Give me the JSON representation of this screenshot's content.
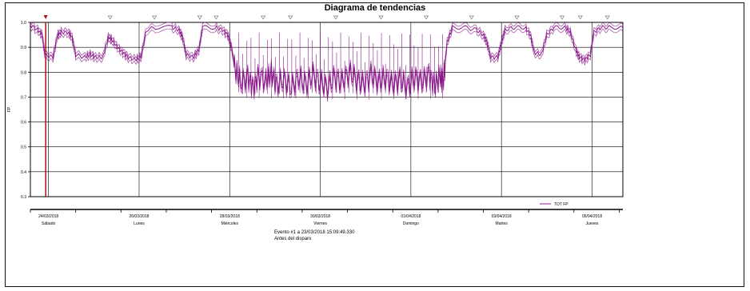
{
  "chart_data": {
    "type": "line",
    "title": "Diagrama de tendencias",
    "ylabel": "FP",
    "ylim": [
      0.3,
      1.0
    ],
    "yticks": [
      "0.3",
      "0.4",
      "0.5",
      "0.6",
      "0.7",
      "0.8",
      "0.9",
      "1.0"
    ],
    "x_range_days": [
      0,
      6.54
    ],
    "xticks": [
      {
        "day": 0.2,
        "date": "24/03/2018",
        "weekday": "Sábado"
      },
      {
        "day": 1.2,
        "date": "26/03/2018",
        "weekday": "Lunes"
      },
      {
        "day": 2.2,
        "date": "28/03/2018",
        "weekday": "Miércoles"
      },
      {
        "day": 3.2,
        "date": "30/03/2018",
        "weekday": "Viernes"
      },
      {
        "day": 4.2,
        "date": "01/04/2018",
        "weekday": "Domingo"
      },
      {
        "day": 5.2,
        "date": "03/04/2018",
        "weekday": "Martes"
      },
      {
        "day": 6.2,
        "date": "05/04/2018",
        "weekday": "Jueves"
      }
    ],
    "event_marker_days": [
      0.88,
      1.37,
      1.87,
      2.05,
      2.57,
      2.87,
      3.37,
      3.87,
      4.37,
      4.87,
      5.37,
      5.87,
      6.07,
      6.37
    ],
    "trigger_day": 0.01,
    "legend": {
      "label": "TOT FP",
      "position": "bottom-right"
    },
    "grid": true,
    "series": [
      {
        "name": "TOT FP",
        "color": "#8b1a8b",
        "points": [
          [
            0.0,
            0.99
          ],
          [
            0.08,
            0.97
          ],
          [
            0.13,
            0.95
          ],
          [
            0.16,
            0.87
          ],
          [
            0.25,
            0.86
          ],
          [
            0.3,
            0.95
          ],
          [
            0.34,
            0.96
          ],
          [
            0.42,
            0.96
          ],
          [
            0.46,
            0.94
          ],
          [
            0.5,
            0.87
          ],
          [
            0.6,
            0.86
          ],
          [
            0.66,
            0.87
          ],
          [
            0.72,
            0.86
          ],
          [
            0.8,
            0.86
          ],
          [
            0.86,
            0.94
          ],
          [
            0.9,
            0.93
          ],
          [
            0.96,
            0.9
          ],
          [
            1.02,
            0.88
          ],
          [
            1.08,
            0.86
          ],
          [
            1.16,
            0.85
          ],
          [
            1.22,
            0.86
          ],
          [
            1.28,
            0.97
          ],
          [
            1.4,
            0.98
          ],
          [
            1.56,
            0.98
          ],
          [
            1.64,
            0.97
          ],
          [
            1.68,
            0.94
          ],
          [
            1.72,
            0.87
          ],
          [
            1.8,
            0.86
          ],
          [
            1.86,
            0.89
          ],
          [
            1.9,
            0.98
          ],
          [
            2.04,
            0.98
          ],
          [
            2.12,
            0.97
          ],
          [
            2.18,
            0.95
          ],
          [
            2.22,
            0.9
          ],
          [
            2.26,
            0.81
          ],
          [
            2.32,
            0.76
          ],
          [
            2.4,
            0.78
          ],
          [
            2.46,
            0.74
          ],
          [
            2.52,
            0.79
          ],
          [
            2.6,
            0.76
          ],
          [
            2.66,
            0.8
          ],
          [
            2.72,
            0.75
          ],
          [
            2.8,
            0.77
          ],
          [
            2.88,
            0.74
          ],
          [
            2.96,
            0.78
          ],
          [
            3.04,
            0.75
          ],
          [
            3.12,
            0.79
          ],
          [
            3.2,
            0.76
          ],
          [
            3.28,
            0.74
          ],
          [
            3.36,
            0.78
          ],
          [
            3.44,
            0.76
          ],
          [
            3.52,
            0.8
          ],
          [
            3.6,
            0.77
          ],
          [
            3.68,
            0.75
          ],
          [
            3.76,
            0.79
          ],
          [
            3.84,
            0.76
          ],
          [
            3.92,
            0.78
          ],
          [
            4.0,
            0.75
          ],
          [
            4.08,
            0.77
          ],
          [
            4.16,
            0.74
          ],
          [
            4.24,
            0.78
          ],
          [
            4.32,
            0.76
          ],
          [
            4.4,
            0.79
          ],
          [
            4.46,
            0.75
          ],
          [
            4.52,
            0.78
          ],
          [
            4.56,
            0.77
          ],
          [
            4.6,
            0.92
          ],
          [
            4.66,
            0.98
          ],
          [
            4.8,
            0.98
          ],
          [
            4.92,
            0.97
          ],
          [
            5.0,
            0.95
          ],
          [
            5.04,
            0.92
          ],
          [
            5.08,
            0.86
          ],
          [
            5.16,
            0.86
          ],
          [
            5.2,
            0.92
          ],
          [
            5.24,
            0.97
          ],
          [
            5.34,
            0.98
          ],
          [
            5.46,
            0.98
          ],
          [
            5.52,
            0.95
          ],
          [
            5.56,
            0.88
          ],
          [
            5.64,
            0.87
          ],
          [
            5.7,
            0.95
          ],
          [
            5.78,
            0.98
          ],
          [
            5.9,
            0.98
          ],
          [
            5.96,
            0.96
          ],
          [
            6.02,
            0.89
          ],
          [
            6.06,
            0.86
          ],
          [
            6.12,
            0.85
          ],
          [
            6.18,
            0.87
          ],
          [
            6.22,
            0.96
          ],
          [
            6.3,
            0.98
          ],
          [
            6.4,
            0.98
          ],
          [
            6.54,
            0.98
          ]
        ]
      }
    ]
  },
  "info": {
    "event_text": "Evento #1 a 23/03/2018 15:09:49.330",
    "trigger_text": "Antes del disparo"
  }
}
